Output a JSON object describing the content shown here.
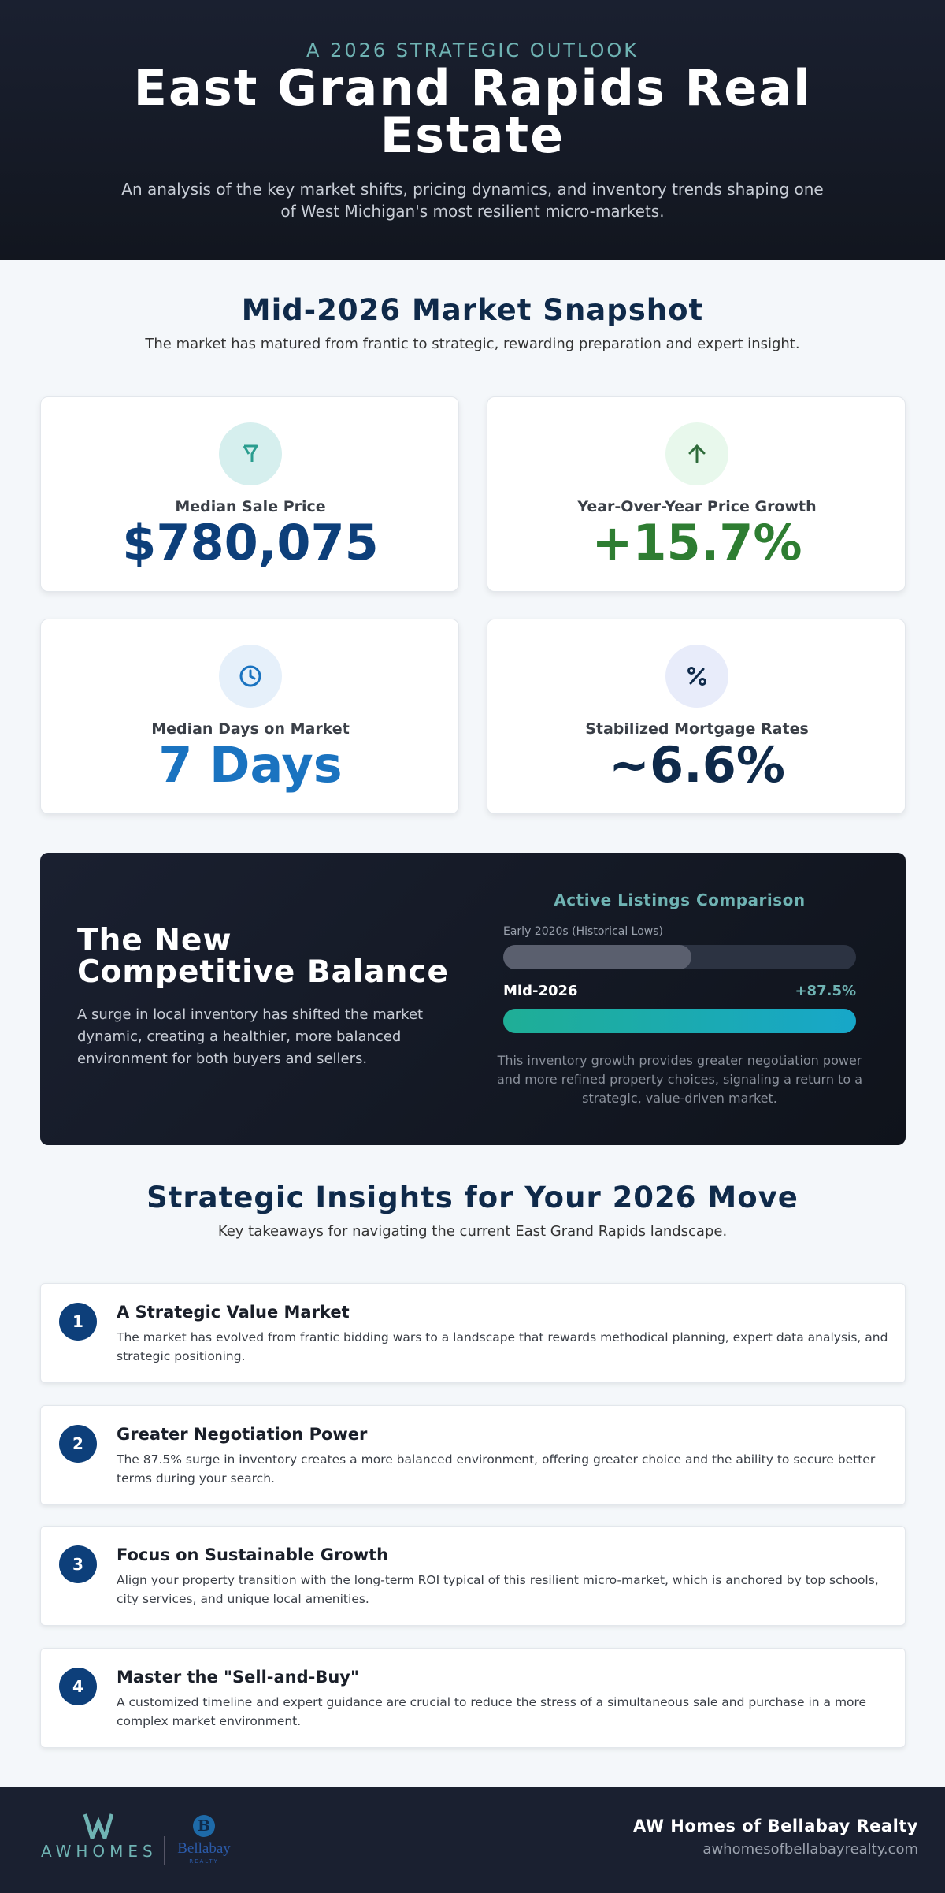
{
  "header": {
    "eyebrow": "A 2026 STRATEGIC OUTLOOK",
    "title": "East Grand Rapids Real Estate",
    "description": "An analysis of the key market shifts, pricing dynamics, and inventory trends shaping one of West Michigan's most resilient micro-markets."
  },
  "snapshot": {
    "title": "Mid-2026 Market Snapshot",
    "subtitle": "The market has matured from frantic to strategic, rewarding preparation and expert insight.",
    "cards": [
      {
        "label": "Median Sale Price",
        "value": "$780,075"
      },
      {
        "label": "Year-Over-Year Price Growth",
        "value": "+15.7%"
      },
      {
        "label": "Median Days on Market",
        "value": "7 Days"
      },
      {
        "label": "Stabilized Mortgage Rates",
        "value": "~6.6%"
      }
    ]
  },
  "balance": {
    "title": "The New Competitive Balance",
    "text": "A surge in local inventory has shifted the market dynamic, creating a healthier, more balanced environment for both buyers and sellers.",
    "comparison": {
      "title": "Active Listings Comparison",
      "before_label": "Early 2020s (Historical Lows)",
      "after_label": "Mid-2026",
      "change": 87.5,
      "change_label": "+87.5%",
      "note": "This inventory growth provides greater negotiation power and more refined property choices, signaling a return to a strategic, value-driven market."
    }
  },
  "insights": {
    "title": "Strategic Insights for Your 2026 Move",
    "subtitle": "Key takeaways for navigating the current East Grand Rapids landscape.",
    "items": [
      {
        "number": 1,
        "title": "A Strategic Value Market",
        "text": "The market has evolved from frantic bidding wars to a landscape that rewards methodical planning, expert data analysis, and strategic positioning."
      },
      {
        "number": 2,
        "title": "Greater Negotiation Power",
        "text": "The 87.5% surge in inventory creates a more balanced environment, offering greater choice and the ability to secure better terms during your search."
      },
      {
        "number": 3,
        "title": "Focus on Sustainable Growth",
        "text": "Align your property transition with the long-term ROI typical of this resilient micro-market, which is anchored by top schools, city services, and unique local amenities."
      },
      {
        "number": 4,
        "title": "Master the \"Sell-and-Buy\"",
        "text": "A customized timeline and expert guidance are crucial to reduce the stress of a simultaneous sale and purchase in a more complex market environment."
      }
    ]
  },
  "footer": {
    "logo": {
      "brand": "AWHOMES",
      "partner_initial": "B",
      "partner": "Bellabay",
      "partner_sub": "REALTY"
    },
    "company": "AW Homes of Bellabay Realty",
    "website": "awhomesofbellabayrealty.com"
  }
}
